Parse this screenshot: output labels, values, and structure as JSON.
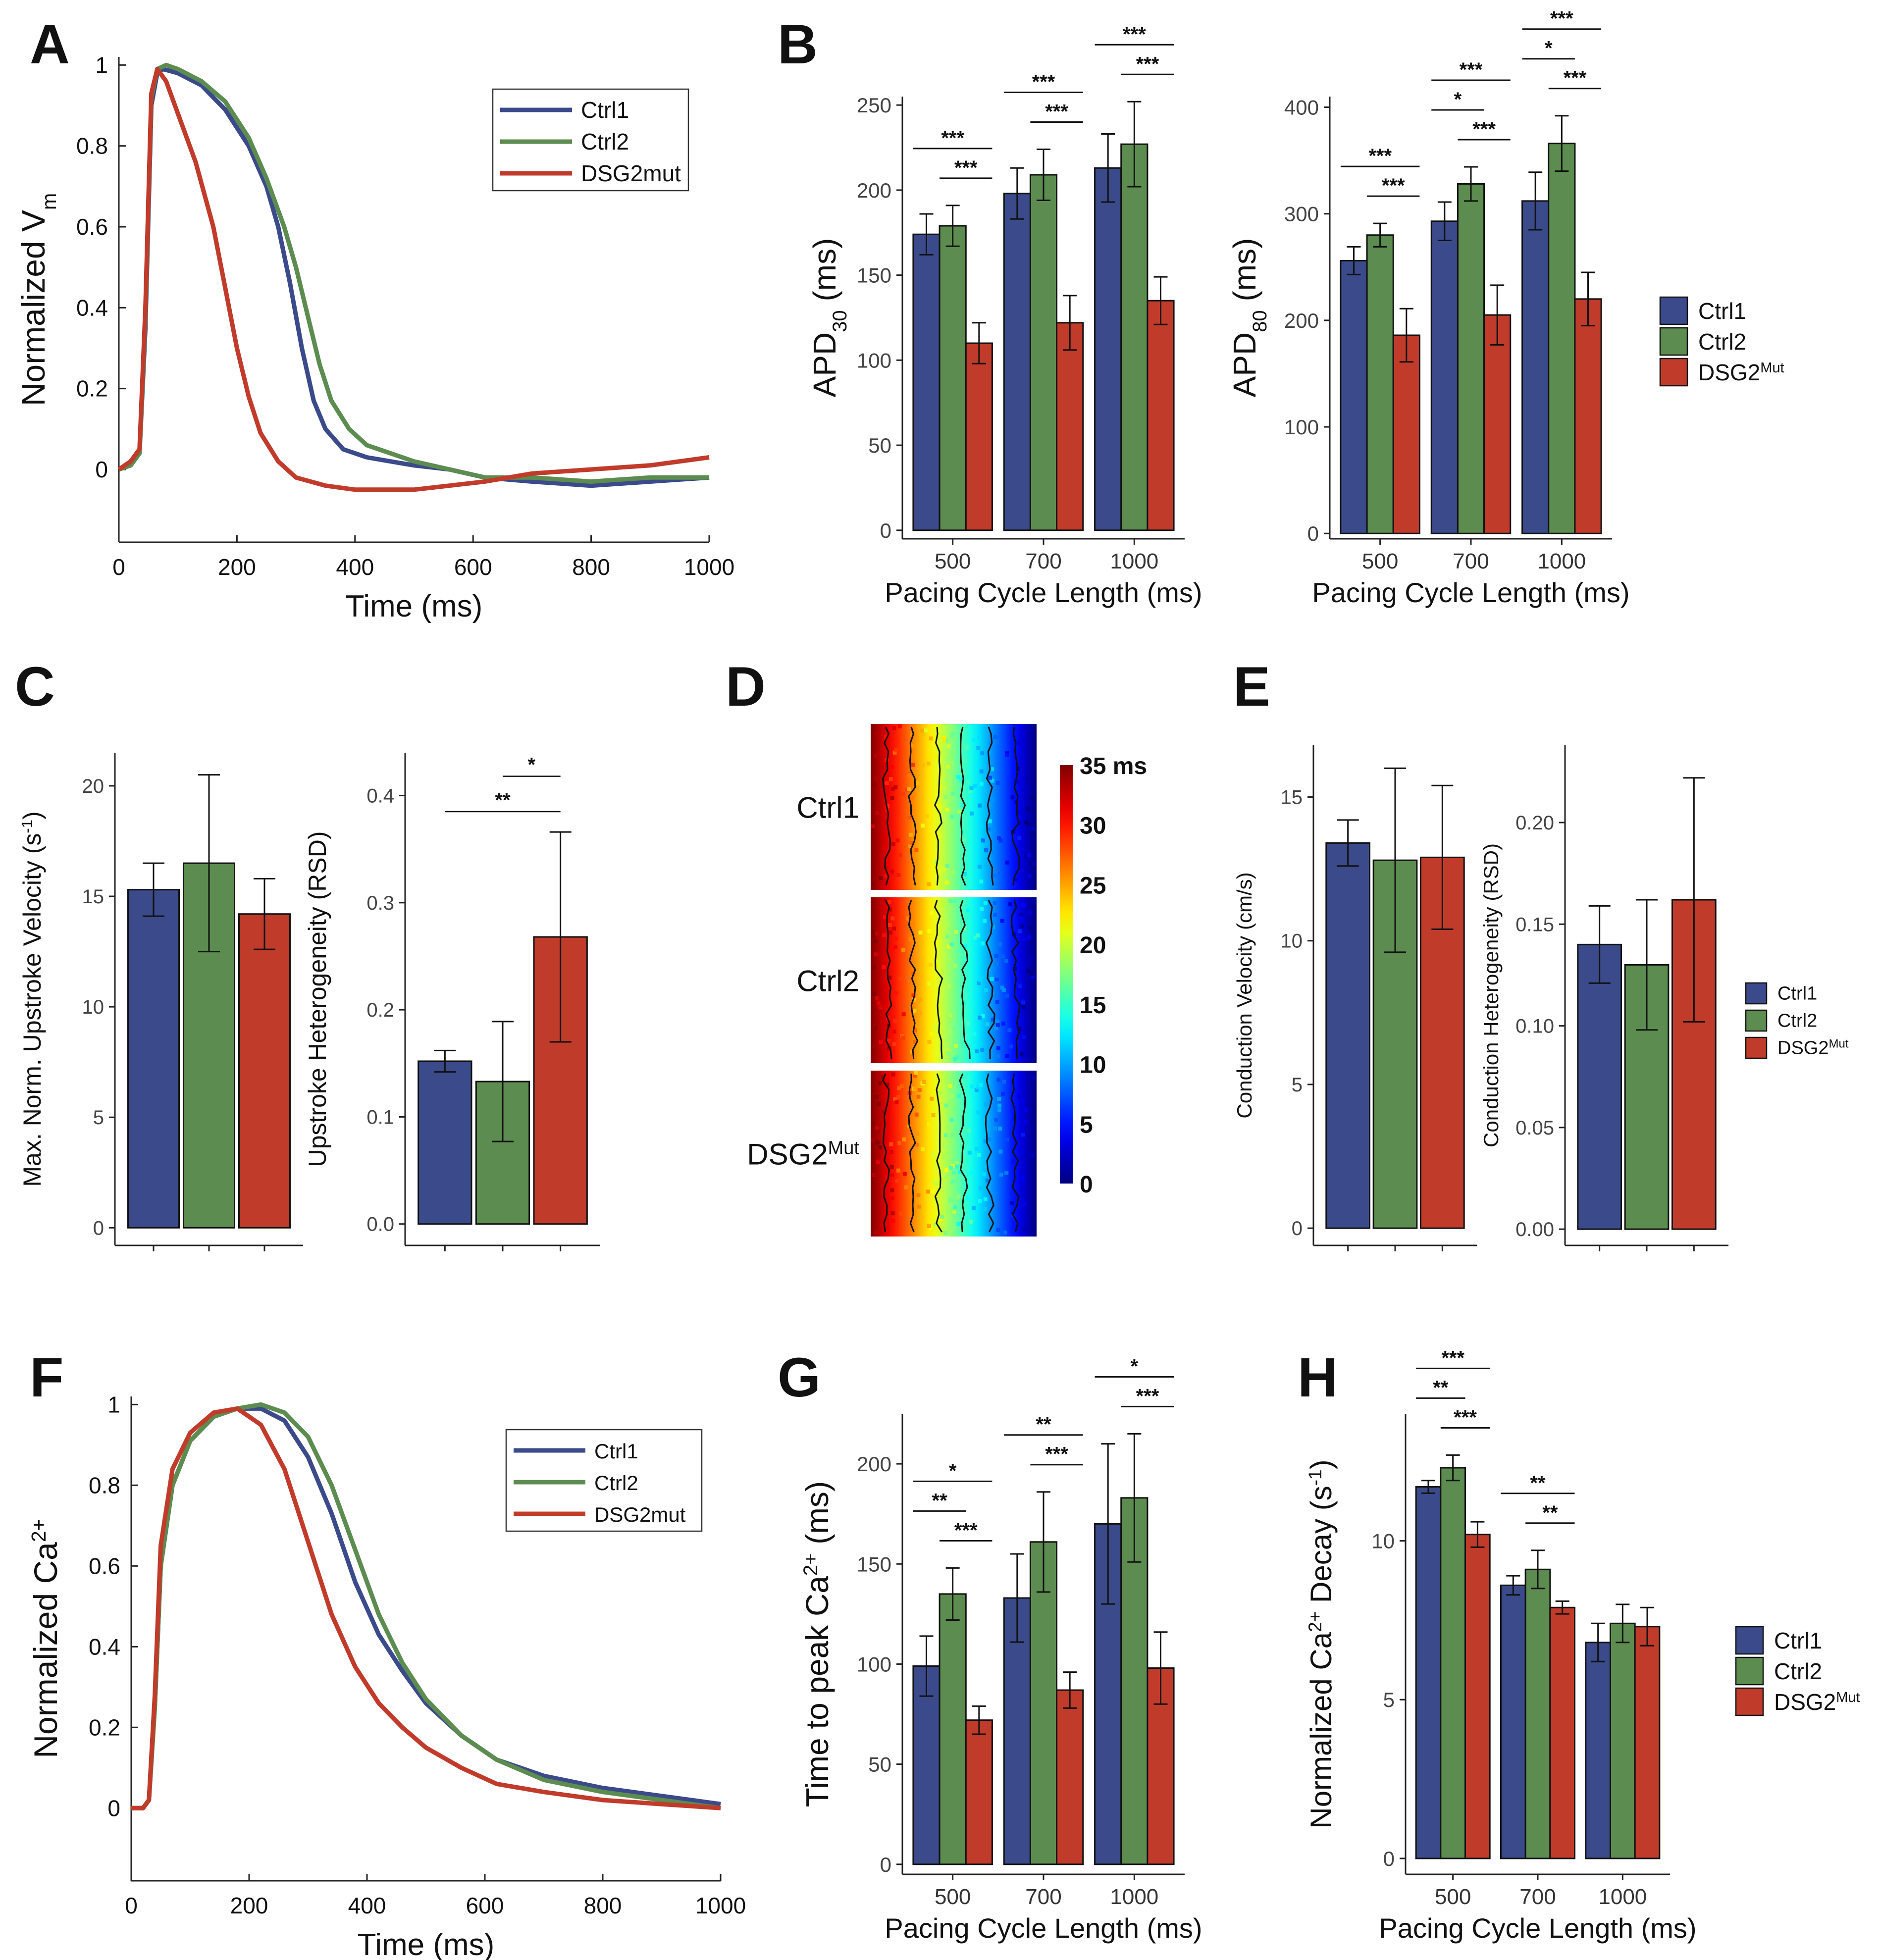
{
  "figure": {
    "colors": {
      "ctrl1": "#3a4a8a",
      "ctrl2": "#5c8c4f",
      "mut": "#c13b2b"
    }
  },
  "panel_labels": [
    "A",
    "B",
    "C",
    "D",
    "E",
    "F",
    "G",
    "H"
  ],
  "legends": {
    "bar_groups": [
      "Ctrl1",
      "Ctrl2",
      "DSG2"
    ],
    "mut_superscript": "Mut",
    "trace_groups": [
      "Ctrl1",
      "Ctrl2",
      "DSG2mut"
    ]
  },
  "chart_data": [
    {
      "id": "A",
      "type": "line",
      "xlabel": "Time (ms)",
      "ylabel": "Normalized V",
      "ylabel_sub": "m",
      "xlim": [
        0,
        1000
      ],
      "ylim": [
        -0.18,
        1.02
      ],
      "xticks": [
        "0",
        "200",
        "400",
        "600",
        "800",
        "1000"
      ],
      "yticks": [
        "0",
        "0.2",
        "0.4",
        "0.6",
        "0.8",
        "1"
      ],
      "series": [
        {
          "name": "Ctrl1",
          "x": [
            0,
            20,
            35,
            45,
            55,
            65,
            75,
            100,
            140,
            180,
            220,
            250,
            270,
            290,
            310,
            330,
            350,
            380,
            420,
            460,
            500,
            560,
            620,
            700,
            800,
            900,
            1000
          ],
          "y": [
            0,
            0.01,
            0.04,
            0.35,
            0.9,
            0.98,
            0.99,
            0.98,
            0.95,
            0.89,
            0.8,
            0.7,
            0.6,
            0.46,
            0.3,
            0.17,
            0.1,
            0.05,
            0.03,
            0.02,
            0.01,
            0.0,
            -0.02,
            -0.03,
            -0.04,
            -0.03,
            -0.02
          ]
        },
        {
          "name": "Ctrl2",
          "x": [
            0,
            20,
            35,
            45,
            55,
            65,
            80,
            100,
            140,
            180,
            220,
            250,
            280,
            300,
            320,
            340,
            360,
            390,
            420,
            460,
            500,
            560,
            620,
            700,
            800,
            900,
            1000
          ],
          "y": [
            0,
            0.01,
            0.04,
            0.38,
            0.92,
            0.99,
            1.0,
            0.99,
            0.96,
            0.91,
            0.82,
            0.72,
            0.6,
            0.5,
            0.38,
            0.26,
            0.17,
            0.1,
            0.06,
            0.04,
            0.02,
            0.0,
            -0.02,
            -0.02,
            -0.03,
            -0.02,
            -0.02
          ]
        },
        {
          "name": "DSG2mut",
          "x": [
            0,
            20,
            35,
            45,
            55,
            65,
            80,
            100,
            130,
            160,
            180,
            200,
            220,
            240,
            270,
            300,
            350,
            400,
            450,
            500,
            560,
            620,
            700,
            800,
            900,
            1000
          ],
          "y": [
            0,
            0.02,
            0.05,
            0.4,
            0.93,
            0.99,
            0.96,
            0.88,
            0.76,
            0.6,
            0.45,
            0.3,
            0.18,
            0.09,
            0.02,
            -0.02,
            -0.04,
            -0.05,
            -0.05,
            -0.05,
            -0.04,
            -0.03,
            -0.01,
            0.0,
            0.01,
            0.03
          ]
        }
      ]
    },
    {
      "id": "B1",
      "type": "bar",
      "ylabel": "APD",
      "ylabel_sub": "30",
      "ylabel_unit": " (ms)",
      "xlabel": "Pacing Cycle Length (ms)",
      "categories": [
        "500",
        "700",
        "1000"
      ],
      "ylim": [
        -5,
        255
      ],
      "yticks": [
        "0",
        "50",
        "100",
        "150",
        "200",
        "250"
      ],
      "series": [
        {
          "name": "Ctrl1",
          "values": [
            174,
            198,
            213
          ],
          "err": [
            12,
            15,
            20
          ]
        },
        {
          "name": "Ctrl2",
          "values": [
            179,
            209,
            227
          ],
          "err": [
            12,
            15,
            25
          ]
        },
        {
          "name": "DSG2Mut",
          "values": [
            110,
            122,
            135
          ],
          "err": [
            12,
            16,
            14
          ]
        }
      ],
      "sig": [
        {
          "g": 0,
          "from": 0,
          "to": 2,
          "label": "***"
        },
        {
          "g": 0,
          "from": 1,
          "to": 2,
          "label": "***"
        },
        {
          "g": 1,
          "from": 0,
          "to": 2,
          "label": "***"
        },
        {
          "g": 1,
          "from": 1,
          "to": 2,
          "label": "***"
        },
        {
          "g": 2,
          "from": 0,
          "to": 2,
          "label": "***"
        },
        {
          "g": 2,
          "from": 1,
          "to": 2,
          "label": "***"
        }
      ]
    },
    {
      "id": "B2",
      "type": "bar",
      "ylabel": "APD",
      "ylabel_sub": "80",
      "ylabel_unit": " (ms)",
      "xlabel": "Pacing Cycle Length (ms)",
      "categories": [
        "500",
        "700",
        "1000"
      ],
      "ylim": [
        -5,
        410
      ],
      "yticks": [
        "0",
        "100",
        "200",
        "300",
        "400"
      ],
      "series": [
        {
          "name": "Ctrl1",
          "values": [
            256,
            293,
            312
          ],
          "err": [
            13,
            18,
            27
          ]
        },
        {
          "name": "Ctrl2",
          "values": [
            280,
            328,
            366
          ],
          "err": [
            11,
            16,
            26
          ]
        },
        {
          "name": "DSG2Mut",
          "values": [
            186,
            205,
            220
          ],
          "err": [
            25,
            28,
            25
          ]
        }
      ],
      "sig": [
        {
          "g": 0,
          "from": 0,
          "to": 2,
          "label": "***"
        },
        {
          "g": 0,
          "from": 1,
          "to": 2,
          "label": "***"
        },
        {
          "g": 1,
          "from": 0,
          "to": 1,
          "label": "*"
        },
        {
          "g": 1,
          "from": 0,
          "to": 2,
          "label": "***"
        },
        {
          "g": 1,
          "from": 1,
          "to": 2,
          "label": "***"
        },
        {
          "g": 2,
          "from": 0,
          "to": 1,
          "label": "*"
        },
        {
          "g": 2,
          "from": 0,
          "to": 2,
          "label": "***"
        },
        {
          "g": 2,
          "from": 1,
          "to": 2,
          "label": "***"
        }
      ]
    },
    {
      "id": "C1",
      "type": "bar",
      "ylabel": "Max. Norm. Upstroke Velocity (s",
      "ylabel_sup": "-1",
      "ylabel_tail": ")",
      "ylim": [
        -0.8,
        21.5
      ],
      "yticks": [
        "0",
        "5",
        "10",
        "15",
        "20"
      ],
      "series": [
        {
          "name": "Ctrl1",
          "values": [
            15.3
          ],
          "err": [
            1.2
          ]
        },
        {
          "name": "Ctrl2",
          "values": [
            16.5
          ],
          "err": [
            4.0
          ]
        },
        {
          "name": "DSG2Mut",
          "values": [
            14.2
          ],
          "err": [
            1.6
          ]
        }
      ]
    },
    {
      "id": "C2",
      "type": "bar",
      "ylabel": "Upstroke Heterogeneity (RSD)",
      "ylim": [
        -0.02,
        0.44
      ],
      "yticks": [
        "0.0",
        "0.1",
        "0.2",
        "0.3",
        "0.4"
      ],
      "series": [
        {
          "name": "Ctrl1",
          "values": [
            0.152
          ],
          "err": [
            0.01
          ]
        },
        {
          "name": "Ctrl2",
          "values": [
            0.133
          ],
          "err": [
            0.056
          ]
        },
        {
          "name": "DSG2Mut",
          "values": [
            0.268
          ],
          "err": [
            0.098
          ]
        }
      ],
      "sig": [
        {
          "from": 1,
          "to": 2,
          "label": "*",
          "y": 0.418
        },
        {
          "from": 0,
          "to": 2,
          "label": "**",
          "y": 0.385
        }
      ]
    },
    {
      "id": "D",
      "type": "heatmap",
      "rows": [
        "Ctrl1",
        "Ctrl2",
        "DSG2"
      ],
      "colorbar_ticks": [
        "35",
        "30",
        "25",
        "20",
        "15",
        "10",
        "5",
        "0"
      ],
      "colorbar_unit": "ms",
      "range": [
        0,
        35
      ]
    },
    {
      "id": "E1",
      "type": "bar",
      "ylabel": "Conduction Velocity (cm/s)",
      "ylim": [
        -0.6,
        16.8
      ],
      "yticks": [
        "0",
        "5",
        "10",
        "15"
      ],
      "series": [
        {
          "name": "Ctrl1",
          "values": [
            13.4
          ],
          "err": [
            0.8
          ]
        },
        {
          "name": "Ctrl2",
          "values": [
            12.8
          ],
          "err": [
            3.2
          ]
        },
        {
          "name": "DSG2Mut",
          "values": [
            12.9
          ],
          "err": [
            2.5
          ]
        }
      ]
    },
    {
      "id": "E2",
      "type": "bar",
      "ylabel": "Conduction Heterogeneity (RSD)",
      "ylim": [
        -0.008,
        0.238
      ],
      "yticks": [
        "0.00",
        "0.05",
        "0.10",
        "0.15",
        "0.20"
      ],
      "series": [
        {
          "name": "Ctrl1",
          "values": [
            0.14
          ],
          "err": [
            0.019
          ]
        },
        {
          "name": "Ctrl2",
          "values": [
            0.13
          ],
          "err": [
            0.032
          ]
        },
        {
          "name": "DSG2Mut",
          "values": [
            0.162
          ],
          "err": [
            0.06
          ]
        }
      ]
    },
    {
      "id": "F",
      "type": "line",
      "xlabel": "Time (ms)",
      "ylabel": "Normalized Ca",
      "ylabel_sup": "2+",
      "xlim": [
        0,
        1000
      ],
      "ylim": [
        -0.18,
        1.02
      ],
      "xticks": [
        "0",
        "200",
        "400",
        "600",
        "800",
        "1000"
      ],
      "yticks": [
        "0",
        "0.2",
        "0.4",
        "0.6",
        "0.8",
        "1"
      ],
      "series": [
        {
          "name": "Ctrl1",
          "x": [
            0,
            20,
            30,
            40,
            50,
            70,
            100,
            140,
            180,
            220,
            260,
            300,
            340,
            380,
            420,
            460,
            500,
            560,
            620,
            700,
            800,
            900,
            1000
          ],
          "y": [
            0,
            0.0,
            0.02,
            0.25,
            0.6,
            0.8,
            0.91,
            0.97,
            0.99,
            0.99,
            0.96,
            0.87,
            0.73,
            0.56,
            0.43,
            0.34,
            0.26,
            0.18,
            0.12,
            0.08,
            0.05,
            0.03,
            0.01
          ]
        },
        {
          "name": "Ctrl2",
          "x": [
            0,
            20,
            30,
            40,
            50,
            70,
            100,
            140,
            180,
            220,
            260,
            300,
            340,
            380,
            420,
            460,
            500,
            560,
            620,
            700,
            800,
            900,
            1000
          ],
          "y": [
            0,
            0.0,
            0.02,
            0.25,
            0.6,
            0.8,
            0.91,
            0.97,
            0.99,
            1.0,
            0.98,
            0.92,
            0.8,
            0.64,
            0.48,
            0.36,
            0.27,
            0.18,
            0.12,
            0.07,
            0.04,
            0.02,
            0.0
          ]
        },
        {
          "name": "DSG2mut",
          "x": [
            0,
            20,
            30,
            40,
            50,
            70,
            100,
            140,
            180,
            220,
            260,
            300,
            340,
            380,
            420,
            460,
            500,
            560,
            620,
            700,
            800,
            900,
            1000
          ],
          "y": [
            0,
            0.0,
            0.02,
            0.28,
            0.65,
            0.84,
            0.93,
            0.98,
            0.99,
            0.95,
            0.84,
            0.66,
            0.48,
            0.35,
            0.26,
            0.2,
            0.15,
            0.1,
            0.06,
            0.04,
            0.02,
            0.01,
            0.0
          ]
        }
      ]
    },
    {
      "id": "G",
      "type": "bar",
      "ylabel": "Time to peak Ca",
      "ylabel_sup": "2+",
      "ylabel_tail": " (ms)",
      "xlabel": "Pacing Cycle Length (ms)",
      "categories": [
        "500",
        "700",
        "1000"
      ],
      "ylim": [
        -5,
        225
      ],
      "yticks": [
        "0",
        "50",
        "100",
        "150",
        "200"
      ],
      "series": [
        {
          "name": "Ctrl1",
          "values": [
            99,
            133,
            170
          ],
          "err": [
            15,
            22,
            40
          ]
        },
        {
          "name": "Ctrl2",
          "values": [
            135,
            161,
            183
          ],
          "err": [
            13,
            25,
            32
          ]
        },
        {
          "name": "DSG2Mut",
          "values": [
            72,
            87,
            98
          ],
          "err": [
            7,
            9,
            18
          ]
        }
      ],
      "sig": [
        {
          "g": 0,
          "from": 0,
          "to": 1,
          "label": "**"
        },
        {
          "g": 0,
          "from": 0,
          "to": 2,
          "label": "*"
        },
        {
          "g": 0,
          "from": 1,
          "to": 2,
          "label": "***"
        },
        {
          "g": 1,
          "from": 0,
          "to": 2,
          "label": "**"
        },
        {
          "g": 1,
          "from": 1,
          "to": 2,
          "label": "***"
        },
        {
          "g": 2,
          "from": 0,
          "to": 2,
          "label": "*"
        },
        {
          "g": 2,
          "from": 1,
          "to": 2,
          "label": "***"
        }
      ]
    },
    {
      "id": "H",
      "type": "bar",
      "ylabel": "Normalized Ca",
      "ylabel_sup": "2+",
      "ylabel_tail": " Decay (s",
      "ylabel_sup2": "-1",
      "ylabel_tail2": ")",
      "xlabel": "Pacing Cycle Length (ms)",
      "categories": [
        "500",
        "700",
        "1000"
      ],
      "ylim": [
        -0.5,
        14
      ],
      "yticks": [
        "0",
        "5",
        "10"
      ],
      "series": [
        {
          "name": "Ctrl1",
          "values": [
            11.7,
            8.6,
            6.8
          ],
          "err": [
            0.2,
            0.3,
            0.6
          ]
        },
        {
          "name": "Ctrl2",
          "values": [
            12.3,
            9.1,
            7.4
          ],
          "err": [
            0.4,
            0.6,
            0.6
          ]
        },
        {
          "name": "DSG2Mut",
          "values": [
            10.2,
            7.9,
            7.3
          ],
          "err": [
            0.4,
            0.2,
            0.6
          ]
        }
      ],
      "sig": [
        {
          "g": 0,
          "from": 0,
          "to": 1,
          "label": "**"
        },
        {
          "g": 0,
          "from": 0,
          "to": 2,
          "label": "***"
        },
        {
          "g": 0,
          "from": 1,
          "to": 2,
          "label": "***"
        },
        {
          "g": 1,
          "from": 0,
          "to": 2,
          "label": "**"
        },
        {
          "g": 1,
          "from": 1,
          "to": 2,
          "label": "**"
        }
      ]
    }
  ]
}
